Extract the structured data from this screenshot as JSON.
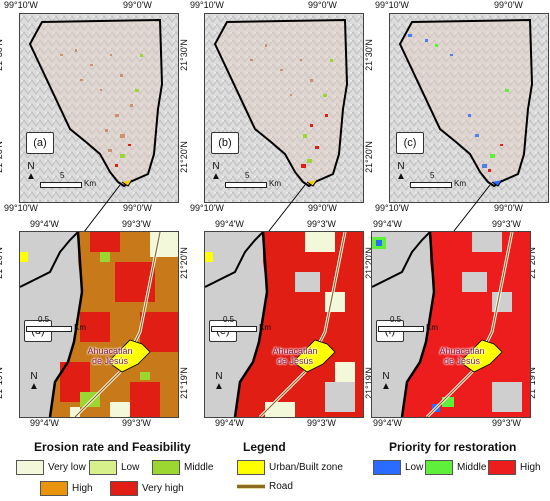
{
  "top_axis": {
    "left_label": "99°10'W",
    "right_label": "99°0'W",
    "lat_upper": "21°30'N",
    "lat_lower": "21°20'N"
  },
  "bottom_axis": {
    "left_label": "99°4'W",
    "right_label": "99°3'W",
    "lat_upper": "21°20'N",
    "lat_lower": "21°19'N"
  },
  "top_panels": [
    {
      "label": "(a)",
      "scale_number": "5",
      "scale_unit": "Km",
      "north": "N"
    },
    {
      "label": "(b)",
      "scale_number": "5",
      "scale_unit": "Km",
      "north": "N"
    },
    {
      "label": "(c)",
      "scale_number": "5",
      "scale_unit": "Km",
      "north": "N"
    }
  ],
  "bottom_panels": [
    {
      "label": "(d)",
      "scale_number": "0.5",
      "scale_unit": "Km",
      "north": "N",
      "town_line1": "Ahuacatlán",
      "town_line2": "de Jesús"
    },
    {
      "label": "(e)",
      "scale_number": "0.5",
      "scale_unit": "Km",
      "north": "N",
      "town_line1": "Ahuacatlán",
      "town_line2": "de Jesús"
    },
    {
      "label": "(f)",
      "scale_number": "0.5",
      "scale_unit": "Km",
      "north": "N",
      "town_line1": "Ahuacatlán",
      "town_line2": "de Jesús"
    }
  ],
  "legend_erosion": {
    "title": "Erosion rate and Feasibility",
    "items": [
      {
        "label": "Very low",
        "color": "#f2f8d9"
      },
      {
        "label": "Low",
        "color": "#d7f08c"
      },
      {
        "label": "Middle",
        "color": "#9bd631"
      },
      {
        "label": "High",
        "color": "#e8940c"
      },
      {
        "label": "Very high",
        "color": "#e01e14"
      }
    ]
  },
  "legend_main": {
    "title": "Legend",
    "items": [
      {
        "label": "Urban/Built zone",
        "color": "#ffff00"
      },
      {
        "label": "Road",
        "color": "#8c6b1f"
      }
    ]
  },
  "legend_priority": {
    "title": "Priority for restoration",
    "items": [
      {
        "label": "Low",
        "color": "#2a6cff"
      },
      {
        "label": "Middle",
        "color": "#5ef03a"
      },
      {
        "label": "High",
        "color": "#ee1d1d"
      }
    ]
  }
}
